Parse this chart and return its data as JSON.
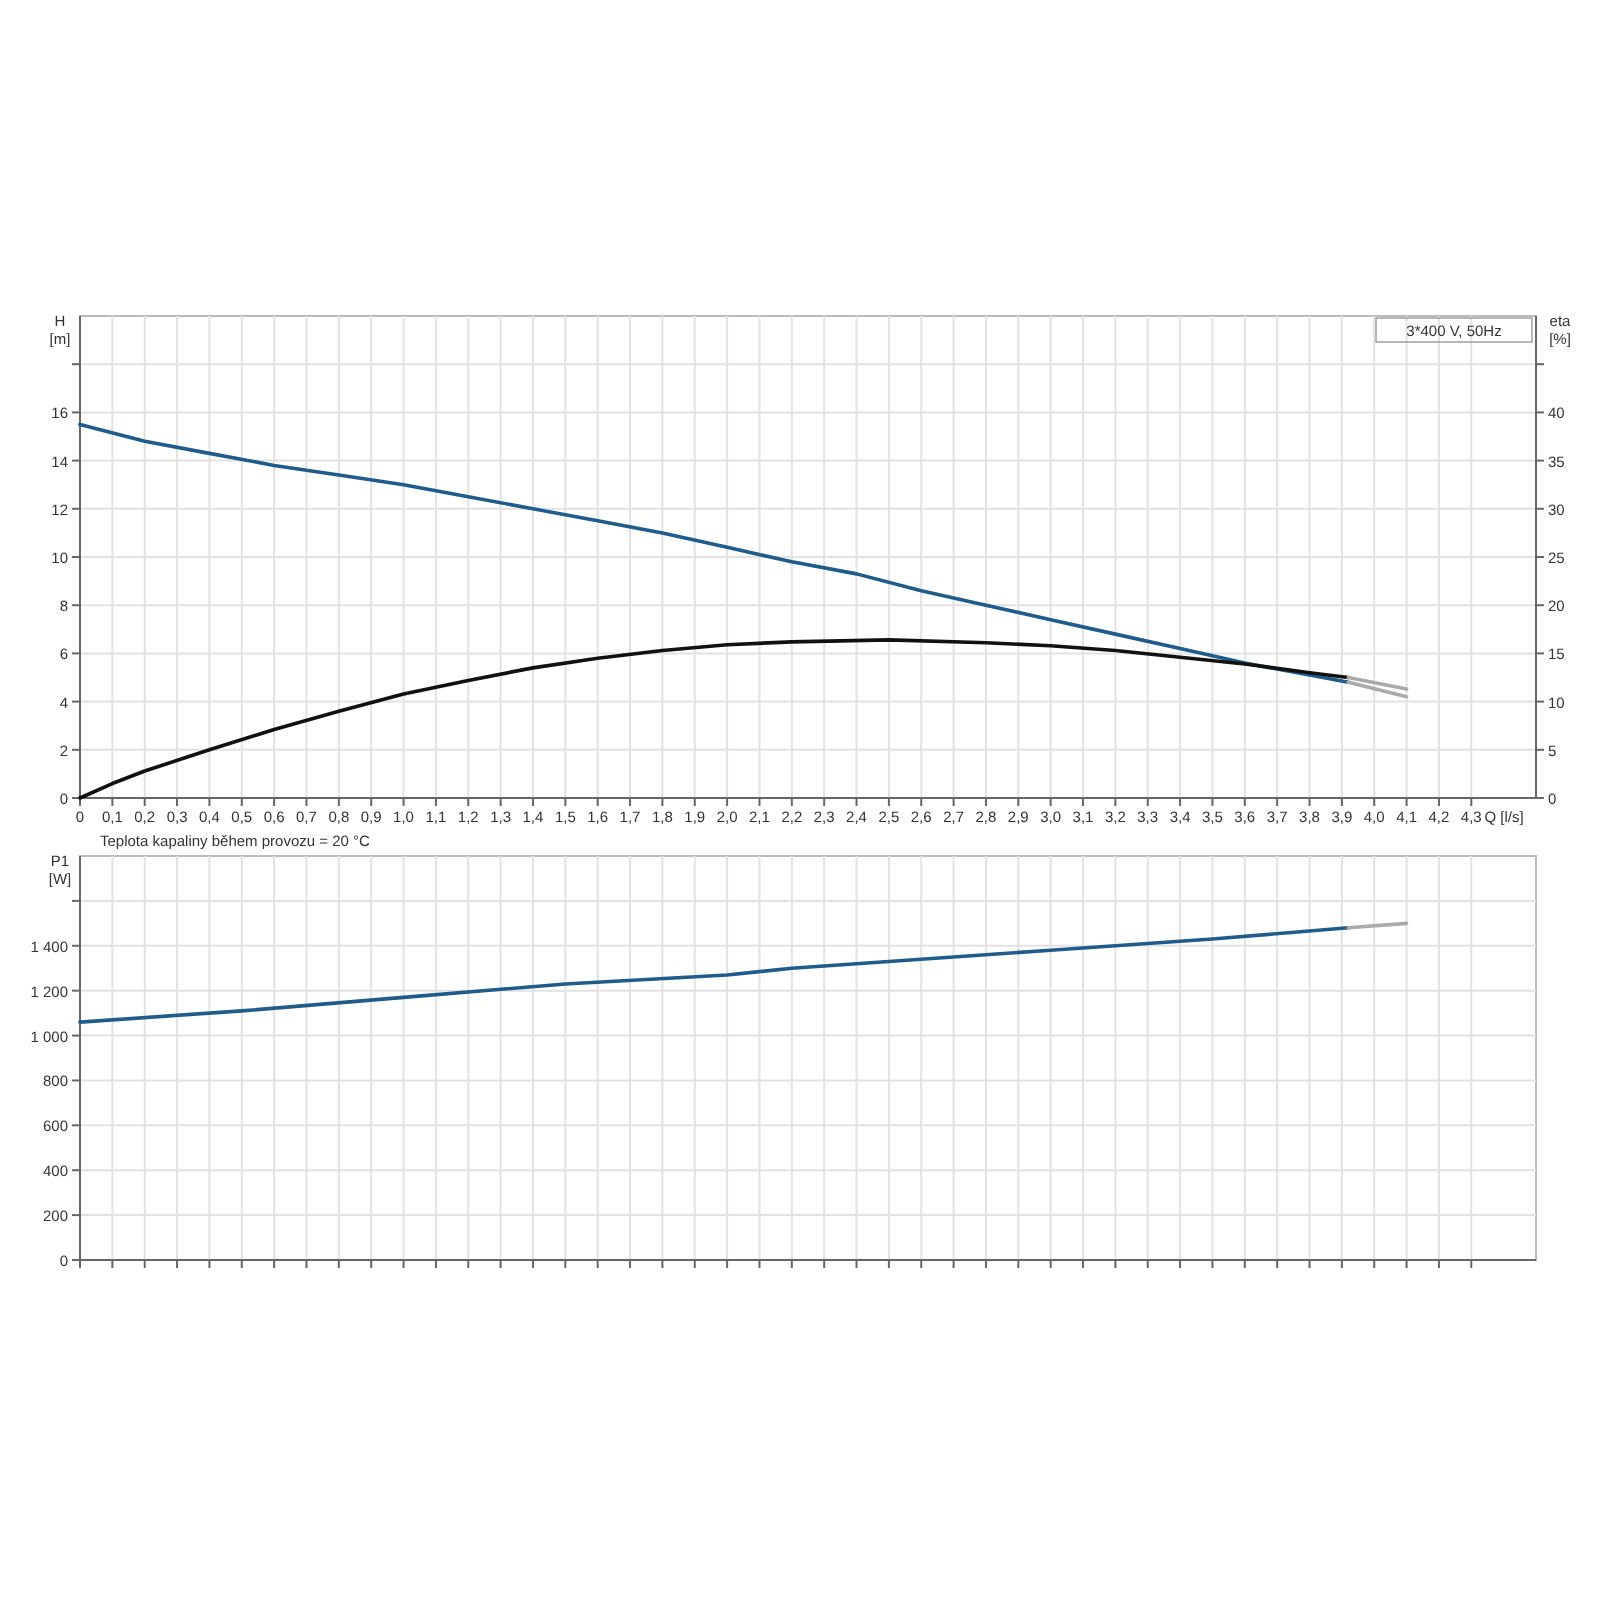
{
  "chart_data": [
    {
      "type": "line",
      "title": "3*400 V, 50Hz",
      "xlabel": "Q [l/s]",
      "ylabel": "H [m]",
      "y2label": "eta [%]",
      "annotations": [
        "Teplota kapaliny během provozu = 20 °C"
      ],
      "grid": true,
      "xlim": [
        0,
        4.5
      ],
      "xticks": [
        0,
        {
          "value": 0.1,
          "label": "0,1"
        },
        {
          "value": 0.2,
          "label": "0,2"
        },
        {
          "value": 0.3,
          "label": "0,3"
        },
        {
          "value": 0.4,
          "label": "0,4"
        },
        {
          "value": 0.5,
          "label": "0,5"
        },
        {
          "value": 0.6,
          "label": "0,6"
        },
        {
          "value": 0.7,
          "label": "0,7"
        },
        {
          "value": 0.8,
          "label": "0,8"
        },
        {
          "value": 0.9,
          "label": "0,9"
        },
        {
          "value": 1,
          "label": "1,0"
        },
        {
          "value": 1.1,
          "label": "1,1"
        },
        {
          "value": 1.2,
          "label": "1,2"
        },
        {
          "value": 1.3,
          "label": "1,3"
        },
        {
          "value": 1.4,
          "label": "1,4"
        },
        {
          "value": 1.5,
          "label": "1,5"
        },
        {
          "value": 1.6,
          "label": "1,6"
        },
        {
          "value": 1.7,
          "label": "1,7"
        },
        {
          "value": 1.8,
          "label": "1,8"
        },
        {
          "value": 1.9,
          "label": "1,9"
        },
        {
          "value": 2,
          "label": "2,0"
        },
        {
          "value": 2.1,
          "label": "2,1"
        },
        {
          "value": 2.2,
          "label": "2,2"
        },
        {
          "value": 2.3,
          "label": "2,3"
        },
        {
          "value": 2.4,
          "label": "2,4"
        },
        {
          "value": 2.5,
          "label": "2,5"
        },
        {
          "value": 2.6,
          "label": "2,6"
        },
        {
          "value": 2.7,
          "label": "2,7"
        },
        {
          "value": 2.8,
          "label": "2,8"
        },
        {
          "value": 2.9,
          "label": "2,9"
        },
        {
          "value": 3,
          "label": "3,0"
        },
        {
          "value": 3.1,
          "label": "3,1"
        },
        {
          "value": 3.2,
          "label": "3,2"
        },
        {
          "value": 3.3,
          "label": "3,3"
        },
        {
          "value": 3.4,
          "label": "3,4"
        },
        {
          "value": 3.5,
          "label": "3,5"
        },
        {
          "value": 3.6,
          "label": "3,6"
        },
        {
          "value": 3.7,
          "label": "3,7"
        },
        {
          "value": 3.8,
          "label": "3,8"
        },
        {
          "value": 3.9,
          "label": "3,9"
        },
        {
          "value": 4,
          "label": "4,0"
        },
        {
          "value": 4.1,
          "label": "4,1"
        },
        {
          "value": 4.2,
          "label": "4,2"
        },
        {
          "value": 4.3,
          "label": "4,3"
        }
      ],
      "ylim": [
        0,
        20
      ],
      "yticks": [
        0,
        2,
        4,
        6,
        8,
        10,
        12,
        14,
        16,
        {
          "value": 18,
          "label": null
        }
      ],
      "y2lim": [
        0,
        50
      ],
      "y2ticks": [
        0,
        5,
        10,
        15,
        20,
        25,
        30,
        35,
        40,
        {
          "value": 45,
          "label": null
        }
      ],
      "series": [
        {
          "color": "#1f5c8c",
          "x": [
            0,
            0.2,
            0.4,
            0.6,
            0.8,
            1,
            1.2,
            1.4,
            1.6,
            1.8,
            2,
            2.2,
            2.4,
            2.6,
            2.8,
            3,
            3.2,
            3.4,
            3.6,
            3.8,
            3.92
          ],
          "values": [
            15.5,
            14.8,
            14.3,
            13.8,
            13.4,
            13,
            12.5,
            12,
            11.5,
            11,
            10.4,
            9.8,
            9.3,
            8.6,
            8,
            7.4,
            6.8,
            6.2,
            5.6,
            5.1,
            4.8
          ]
        },
        {
          "color": "#aaaaaa",
          "x": [
            3.92,
            4.1
          ],
          "values": [
            4.8,
            4.2
          ]
        },
        {
          "color": "#111111",
          "axis": "y2",
          "x": [
            0,
            0.1,
            0.2,
            0.4,
            0.6,
            0.8,
            1,
            1.2,
            1.4,
            1.6,
            1.8,
            2,
            2.2,
            2.5,
            2.8,
            3,
            3.2,
            3.4,
            3.6,
            3.8,
            3.92
          ],
          "values": [
            0,
            1.5,
            2.8,
            5,
            7.1,
            9,
            10.8,
            12.2,
            13.5,
            14.5,
            15.3,
            15.9,
            16.2,
            16.4,
            16.1,
            15.8,
            15.3,
            14.6,
            13.9,
            13,
            12.5
          ]
        },
        {
          "color": "#aaaaaa",
          "axis": "y2",
          "x": [
            3.92,
            4.1
          ],
          "values": [
            12.5,
            11.3
          ]
        }
      ]
    },
    {
      "type": "line",
      "ylabel": "P1 [W]",
      "grid": true,
      "tick_labels": "y",
      "xlim": [
        0,
        4.5
      ],
      "xticks": [
        0,
        0.1,
        0.2,
        0.3,
        0.4,
        0.5,
        0.6,
        0.7,
        0.8,
        0.9,
        1,
        1.1,
        1.2,
        1.3,
        1.4,
        1.5,
        1.6,
        1.7,
        1.8,
        1.9,
        2,
        2.1,
        2.2,
        2.3,
        2.4,
        2.5,
        2.6,
        2.7,
        2.8,
        2.9,
        3,
        3.1,
        3.2,
        3.3,
        3.4,
        3.5,
        3.6,
        3.7,
        3.8,
        3.9,
        4,
        4.1,
        4.2,
        4.3
      ],
      "ylim": [
        0,
        1800
      ],
      "yticks": [
        0,
        200,
        400,
        600,
        800,
        {
          "value": 1000,
          "label": "1 000"
        },
        {
          "value": 1200,
          "label": "1 200"
        },
        {
          "value": 1400,
          "label": "1 400"
        },
        {
          "value": 1600,
          "label": null
        }
      ],
      "series": [
        {
          "color": "#1f5c8c",
          "x": [
            0,
            0.5,
            1,
            1.5,
            2,
            2.2,
            2.5,
            3,
            3.5,
            3.92
          ],
          "values": [
            1060,
            1110,
            1170,
            1230,
            1270,
            1300,
            1330,
            1380,
            1430,
            1480
          ]
        },
        {
          "color": "#aaaaaa",
          "x": [
            3.92,
            4.1
          ],
          "values": [
            1480,
            1500
          ]
        }
      ]
    }
  ]
}
